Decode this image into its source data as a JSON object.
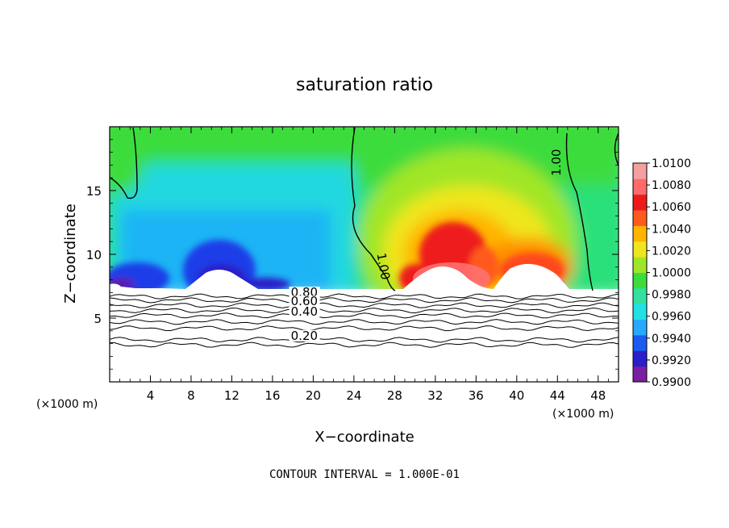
{
  "chart_data": {
    "type": "heatmap",
    "title": "saturation ratio",
    "xlabel": "X−coordinate",
    "ylabel": "Z−coordinate",
    "x_unit": "(×1000 m)",
    "x_unit_right": "(×1000 m)",
    "xlim": [
      0,
      50
    ],
    "ylim": [
      0,
      20
    ],
    "x_ticks": [
      4,
      8,
      12,
      16,
      20,
      24,
      28,
      32,
      36,
      40,
      44,
      48
    ],
    "x_tick_labels": [
      "4",
      "8",
      "12",
      "16",
      "20",
      "24",
      "28",
      "32",
      "36",
      "40",
      "44",
      "48"
    ],
    "y_ticks": [
      5,
      10,
      15
    ],
    "y_tick_labels": [
      "5",
      "10",
      "15"
    ],
    "colorbar": {
      "min": 0.99,
      "max": 1.01,
      "tick_labels": [
        "1.0100",
        "1.0080",
        "1.0060",
        "1.0040",
        "1.0020",
        "1.0000",
        "0.9980",
        "0.9960",
        "0.9940",
        "0.9920",
        "0.9900"
      ],
      "colors": [
        "#7b1fa2",
        "#2a1fc8",
        "#1a5cf0",
        "#29a8ff",
        "#22e0e6",
        "#33e0a0",
        "#3ddc3d",
        "#a0e628",
        "#f0e61e",
        "#ffb400",
        "#ff5a1e",
        "#ee1a1a",
        "#ff6a6a",
        "#f5a0a0"
      ]
    },
    "field_label": "saturation ratio",
    "contour_labels": [
      {
        "text": "1.00",
        "x": 44.3,
        "y": 17.2,
        "rotate": -90
      },
      {
        "text": "1.00",
        "x": 26.5,
        "y": 9.0,
        "rotate": 80
      },
      {
        "text": "0.80",
        "x": 17.8,
        "y": 6.7,
        "rotate": 0
      },
      {
        "text": "0.60",
        "x": 17.8,
        "y": 6.0,
        "rotate": 0
      },
      {
        "text": "0.40",
        "x": 17.8,
        "y": 5.2,
        "rotate": 0
      },
      {
        "text": "0.20",
        "x": 17.8,
        "y": 3.3,
        "rotate": 0
      }
    ],
    "contour_levels_below": [
      6.7,
      6.4,
      6.0,
      5.6,
      5.2,
      4.7,
      4.2,
      3.3,
      2.9
    ],
    "note": "CONTOUR INTERVAL =  1.000E-01"
  }
}
